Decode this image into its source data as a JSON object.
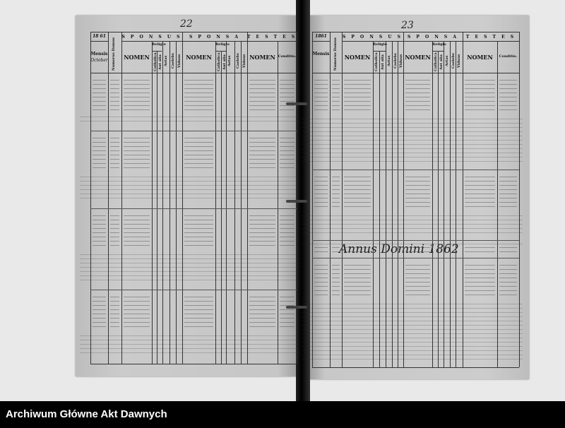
{
  "left_page": {
    "page_number": "22",
    "year": "18 61",
    "month_label": "Mensis",
    "month": "October"
  },
  "right_page": {
    "page_number": "23",
    "year": "1861",
    "month_label": "Mensis",
    "annus_note": "Annus Domini 1862"
  },
  "headers": {
    "numerus_domus": "Numerus Domus",
    "sponsus": "S P O N S U S",
    "sponsa": "S P O N S A",
    "testes": "T E S T E S",
    "nomen": "NOMEN",
    "religio": "Religio",
    "catholica": "Catholica",
    "aut_alia": "Aut alia",
    "aetas": "Aetas",
    "caelebs": "Caelebs",
    "viduus": "Viduus",
    "conditio": "Conditio."
  },
  "footer": {
    "archive_name": "Archiwum Główne Akt Dawnych"
  }
}
